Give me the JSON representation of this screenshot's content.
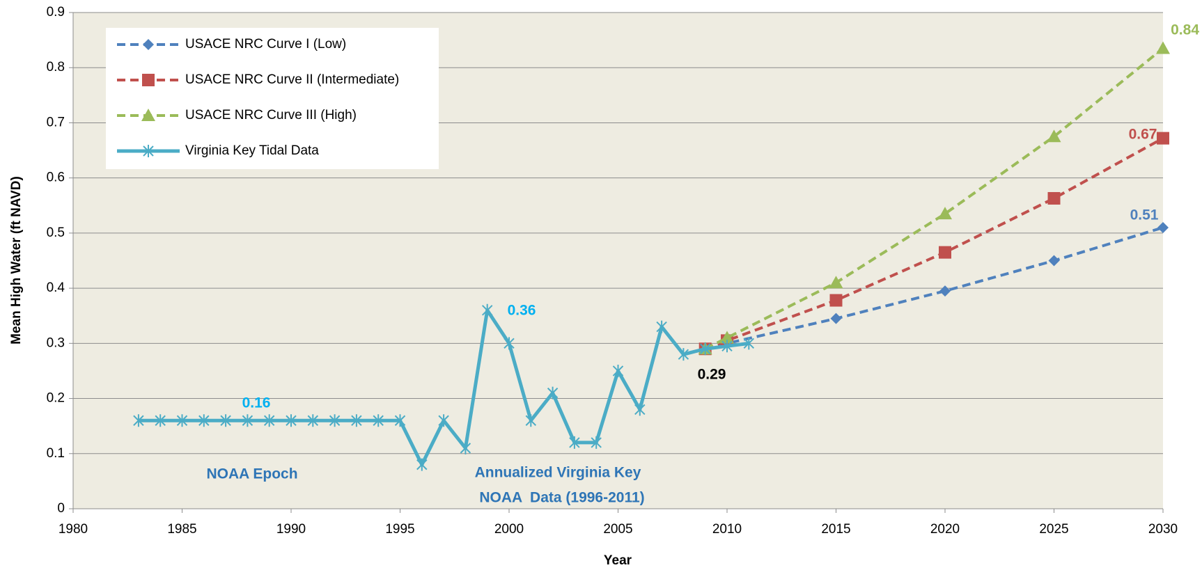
{
  "chart_data": {
    "type": "line",
    "x_label": "Year",
    "y_label": "Mean High Water (ft NAVD)",
    "xlim": [
      1980,
      2030
    ],
    "xticks": [
      1980,
      1985,
      1990,
      1995,
      2000,
      2005,
      2010,
      2015,
      2020,
      2025,
      2030
    ],
    "ylim": [
      0,
      0.9
    ],
    "yticks": [
      0,
      0.1,
      0.2,
      0.3,
      0.4,
      0.5,
      0.6,
      0.7,
      0.8,
      0.9
    ],
    "grid": true,
    "legend": "top-left",
    "series": [
      {
        "name": "USACE NRC Curve I (Low)",
        "color": "#4f81bd",
        "dashed": true,
        "marker": "diamond",
        "x": [
          2009,
          2010,
          2015,
          2020,
          2025,
          2030
        ],
        "values": [
          0.29,
          0.3,
          0.345,
          0.395,
          0.45,
          0.51
        ]
      },
      {
        "name": "USACE NRC Curve II (Intermediate)",
        "color": "#c0504d",
        "dashed": true,
        "marker": "square",
        "x": [
          2009,
          2010,
          2015,
          2020,
          2025,
          2030
        ],
        "values": [
          0.29,
          0.305,
          0.378,
          0.465,
          0.563,
          0.672
        ]
      },
      {
        "name": "USACE NRC Curve III (High)",
        "color": "#9bbb59",
        "dashed": true,
        "marker": "triangle",
        "x": [
          2009,
          2010,
          2015,
          2020,
          2025,
          2030
        ],
        "values": [
          0.29,
          0.31,
          0.41,
          0.535,
          0.675,
          0.835
        ]
      },
      {
        "name": "Virginia Key Tidal Data",
        "color": "#4bacc6",
        "dashed": false,
        "marker": "star",
        "x": [
          1983,
          1984,
          1985,
          1986,
          1987,
          1988,
          1989,
          1990,
          1991,
          1992,
          1993,
          1994,
          1995,
          1996,
          1997,
          1998,
          1999,
          2000,
          2001,
          2002,
          2003,
          2004,
          2005,
          2006,
          2007,
          2008,
          2009,
          2010,
          2011
        ],
        "values": [
          0.16,
          0.16,
          0.16,
          0.16,
          0.16,
          0.16,
          0.16,
          0.16,
          0.16,
          0.16,
          0.16,
          0.16,
          0.16,
          0.08,
          0.16,
          0.11,
          0.36,
          0.3,
          0.16,
          0.21,
          0.12,
          0.12,
          0.25,
          0.18,
          0.33,
          0.28,
          0.29,
          0.295,
          0.3
        ]
      }
    ],
    "annotations": [
      {
        "text": "0.84",
        "color": "#9bbb59"
      },
      {
        "text": "0.67",
        "color": "#c0504d"
      },
      {
        "text": "0.51",
        "color": "#4f81bd"
      },
      {
        "text": "0.36",
        "color": "#00b0f0"
      },
      {
        "text": "0.29",
        "color": "#000000"
      },
      {
        "text": "0.16",
        "color": "#00b0f0"
      },
      {
        "text": "NOAA Epoch",
        "color": "#2e75b6"
      },
      {
        "text": "Annualized Virginia Key",
        "color": "#2e75b6"
      },
      {
        "text": "NOAA  Data (1996-2011)",
        "color": "#2e75b6"
      }
    ]
  }
}
